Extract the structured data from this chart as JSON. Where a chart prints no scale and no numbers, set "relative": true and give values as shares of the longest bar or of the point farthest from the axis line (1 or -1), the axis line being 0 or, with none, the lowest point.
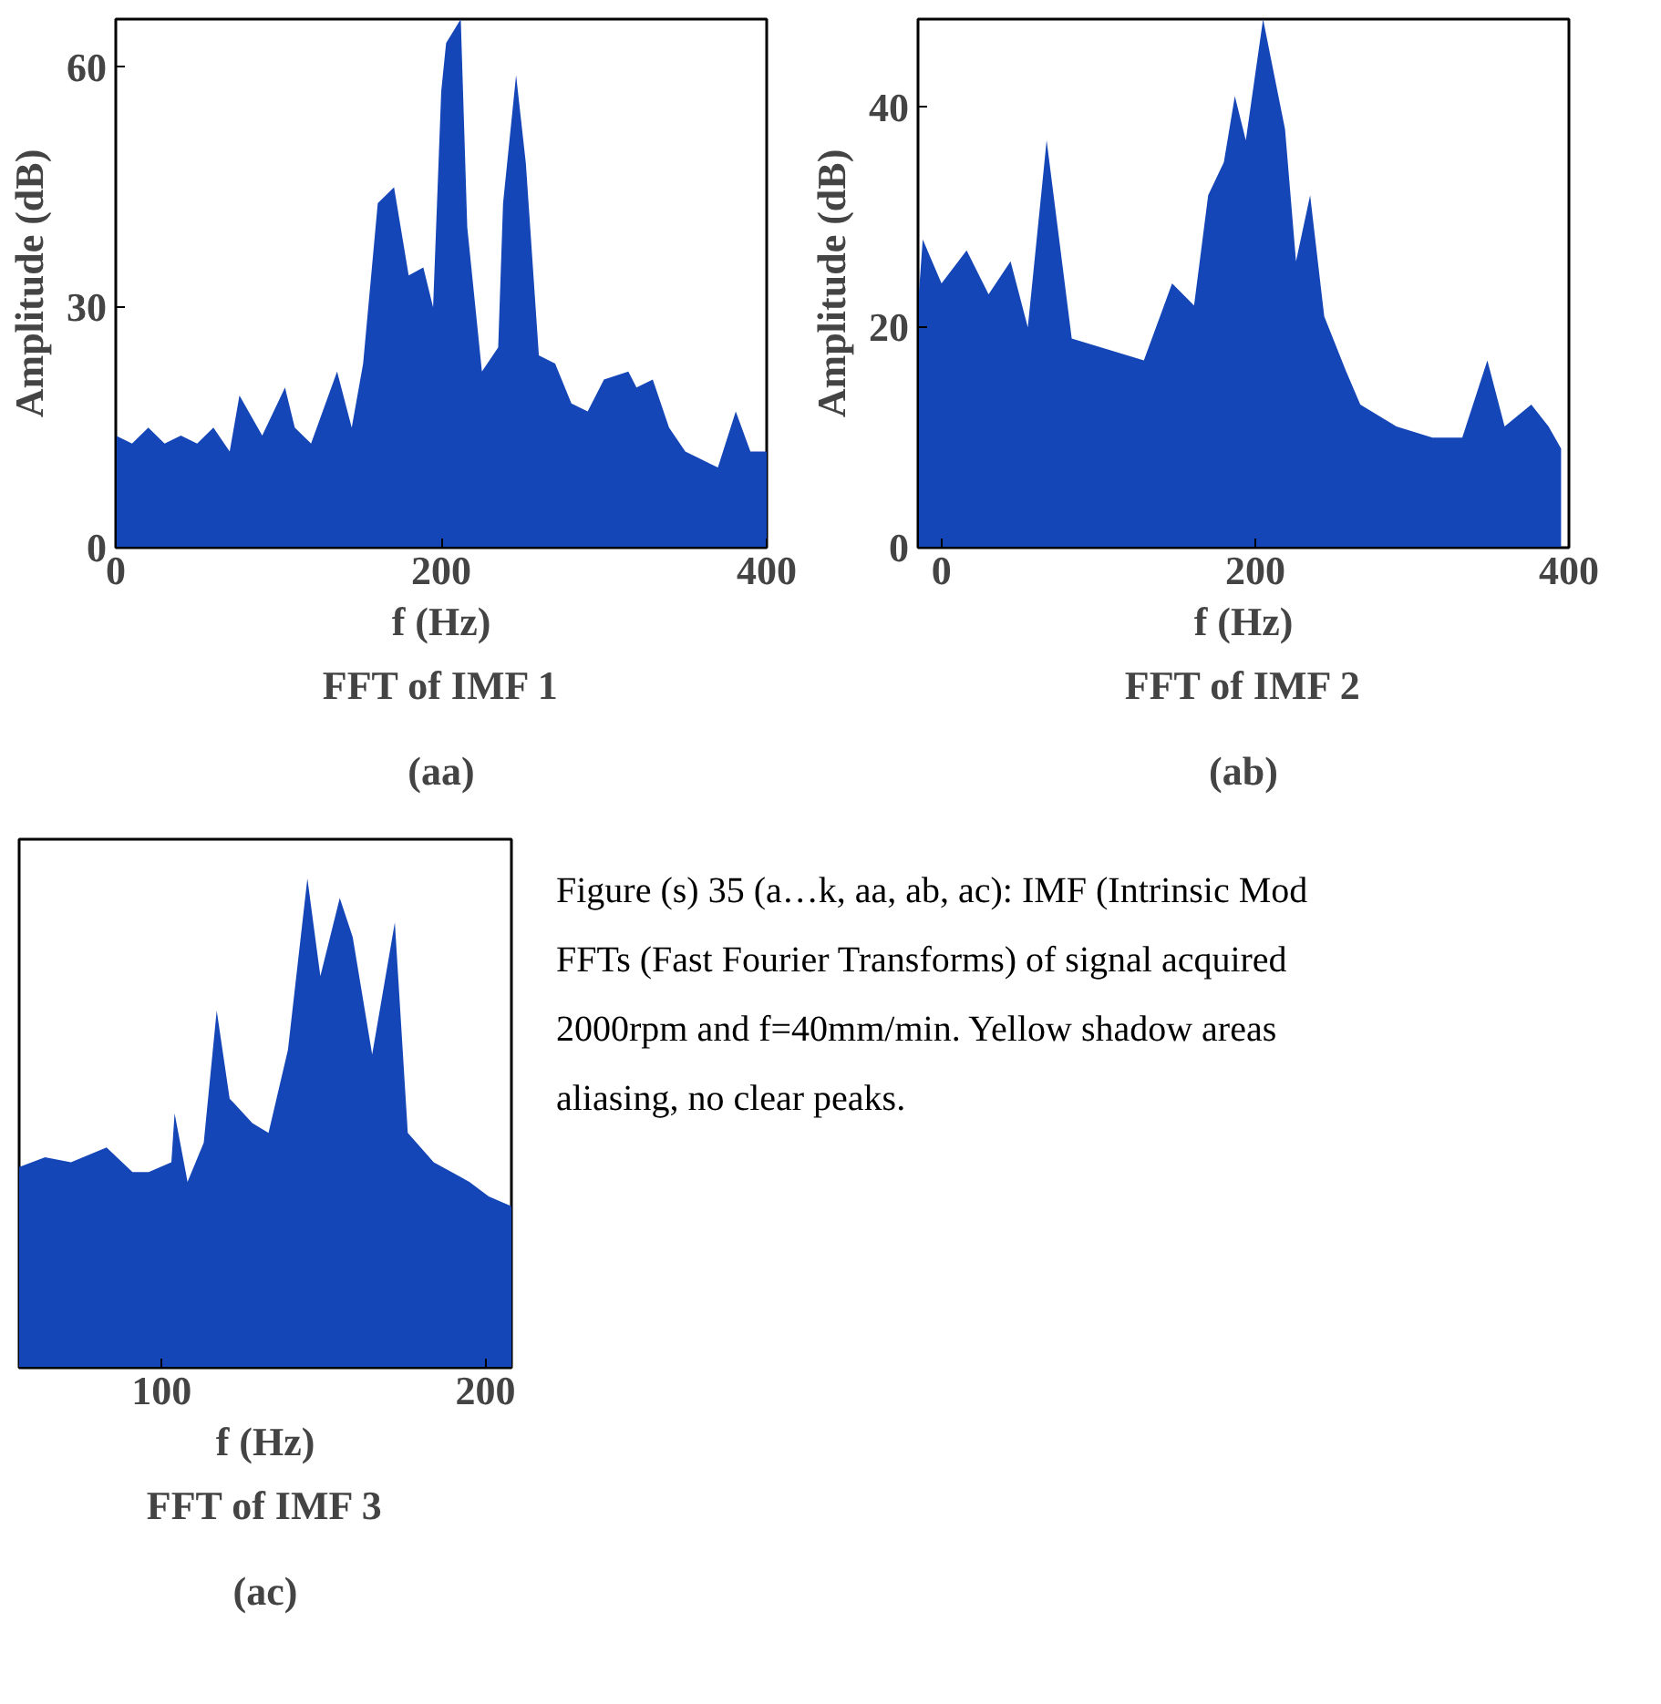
{
  "chart_data": [
    {
      "type": "area",
      "title": "FFT of IMF 1",
      "subtitle": "(aa)",
      "xlabel": "f (Hz)",
      "ylabel": "Amplitude (dB)",
      "xlim": [
        0,
        400
      ],
      "xticks": [
        0,
        200,
        400
      ],
      "ylim": [
        0,
        66
      ],
      "yticks": [
        0,
        30,
        60
      ],
      "grid": false,
      "x": [
        0,
        10,
        20,
        30,
        40,
        50,
        60,
        70,
        76,
        90,
        104,
        110,
        120,
        136,
        145,
        152,
        161,
        171,
        180,
        189,
        195,
        200,
        203,
        212,
        216,
        225,
        235,
        238,
        246,
        252,
        260,
        270,
        280,
        290,
        300,
        315,
        320,
        330,
        340,
        350,
        360,
        370,
        381,
        390,
        400
      ],
      "series": [
        {
          "color": "#1446b8",
          "values": [
            14,
            13,
            15,
            13,
            14,
            13,
            15,
            12,
            19,
            14,
            20,
            15,
            13,
            22,
            15,
            23,
            43,
            45,
            34,
            35,
            30,
            57,
            63,
            66,
            40,
            22,
            25,
            43,
            59,
            48,
            24,
            23,
            18,
            17,
            21,
            22,
            20,
            21,
            15,
            12,
            11,
            10,
            17,
            12,
            12
          ]
        }
      ]
    },
    {
      "type": "area",
      "title": "FFT of IMF 2",
      "subtitle": "(ab)",
      "xlabel": "f (Hz)",
      "ylabel": "Amplitude (dB)",
      "xlim": [
        -15,
        400
      ],
      "xticks": [
        0,
        200,
        400
      ],
      "ylim": [
        0,
        48
      ],
      "yticks": [
        0,
        20,
        40
      ],
      "grid": false,
      "x": [
        -15,
        -12,
        0,
        16,
        30,
        44,
        55,
        67,
        83,
        106,
        129,
        147,
        161,
        170,
        180,
        187,
        194,
        205,
        212,
        219,
        226,
        235,
        244,
        258,
        267,
        290,
        313,
        332,
        348,
        359,
        376,
        387,
        395
      ],
      "series": [
        {
          "color": "#1446b8",
          "values": [
            22,
            28,
            24,
            27,
            23,
            26,
            20,
            37,
            19,
            18,
            17,
            24,
            22,
            32,
            35,
            41,
            37,
            48,
            43,
            38,
            26,
            32,
            21,
            16,
            13,
            11,
            10,
            10,
            17,
            11,
            13,
            11,
            9
          ]
        }
      ]
    },
    {
      "type": "area",
      "title": "FFT of IMF 3",
      "subtitle": "(ac)",
      "xlabel": "f (Hz)",
      "relative": true,
      "tick_labels": "x",
      "xlim": [
        56,
        208
      ],
      "xticks": [
        100,
        200
      ],
      "grid": false,
      "x": [
        56,
        64,
        72,
        83,
        91,
        96,
        103,
        104,
        108,
        113,
        117,
        121,
        128,
        133,
        139,
        145,
        149,
        155,
        159,
        165,
        172,
        176,
        184,
        195,
        201,
        208
      ],
      "series": [
        {
          "color": "#1446b8",
          "values": [
            0.41,
            0.43,
            0.42,
            0.45,
            0.4,
            0.4,
            0.42,
            0.52,
            0.38,
            0.46,
            0.73,
            0.55,
            0.5,
            0.48,
            0.65,
            1.0,
            0.8,
            0.96,
            0.88,
            0.64,
            0.91,
            0.48,
            0.42,
            0.38,
            0.35,
            0.33
          ]
        }
      ]
    },
    {
      "type": "other",
      "annotations": [
        "Figure (s) 35 (a…k, aa, ab, ac): IMF (Intrinsic Mod",
        "FFTs (Fast Fourier Transforms) of signal acquired",
        "2000rpm and f=40mm/min. Yellow shadow areas",
        "aliasing, no clear peaks."
      ]
    }
  ]
}
